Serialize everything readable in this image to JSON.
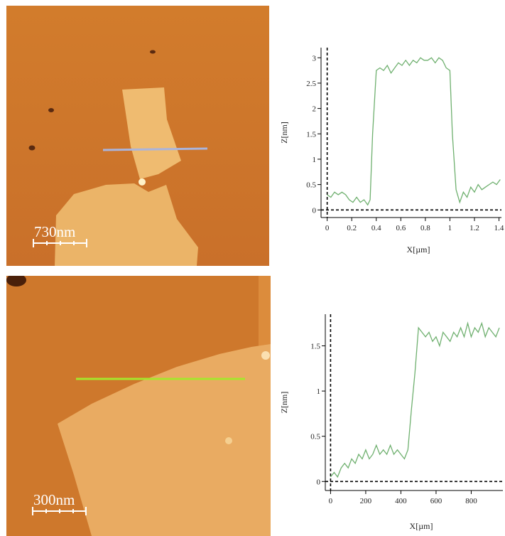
{
  "images": [
    {
      "scale_label": "730nm",
      "profile_line_color": "#aab4dc"
    },
    {
      "scale_label": "300nm",
      "profile_line_color": "#a6e62c"
    }
  ],
  "chart_data": [
    {
      "type": "line",
      "xlabel": "X[µm]",
      "ylabel": "Z[nm]",
      "xlim": [
        -0.05,
        1.42
      ],
      "ylim": [
        -0.15,
        3.2
      ],
      "xticks": [
        0,
        0.2,
        0.4,
        0.6,
        0.8,
        1,
        1.2,
        1.4
      ],
      "xtick_labels": [
        "0",
        "0.2",
        "0.4",
        "0.6",
        "0.8",
        "1",
        "1.2",
        "1.4"
      ],
      "yticks": [
        0,
        0.5,
        1,
        1.5,
        2,
        2.5,
        3
      ],
      "ytick_labels": [
        "0",
        "0.5",
        "1",
        "1.5",
        "2",
        "2.5",
        "3"
      ],
      "grid": false,
      "line_color": "#6fb06f",
      "series": [
        {
          "x": [
            0,
            0.03,
            0.06,
            0.09,
            0.12,
            0.15,
            0.18,
            0.21,
            0.24,
            0.27,
            0.3,
            0.33,
            0.35,
            0.37,
            0.4,
            0.43,
            0.46,
            0.49,
            0.52,
            0.55,
            0.58,
            0.61,
            0.64,
            0.67,
            0.7,
            0.73,
            0.76,
            0.79,
            0.82,
            0.85,
            0.88,
            0.91,
            0.94,
            0.97,
            1.0,
            1.02,
            1.05,
            1.08,
            1.11,
            1.14,
            1.17,
            1.2,
            1.23,
            1.26,
            1.29,
            1.32,
            1.35,
            1.38,
            1.41
          ],
          "y": [
            0.3,
            0.25,
            0.35,
            0.3,
            0.35,
            0.3,
            0.2,
            0.15,
            0.25,
            0.15,
            0.2,
            0.1,
            0.2,
            1.5,
            2.75,
            2.8,
            2.75,
            2.85,
            2.7,
            2.8,
            2.9,
            2.85,
            2.95,
            2.85,
            2.95,
            2.9,
            3.0,
            2.95,
            2.95,
            3.0,
            2.9,
            3.0,
            2.95,
            2.8,
            2.75,
            1.5,
            0.4,
            0.15,
            0.35,
            0.25,
            0.45,
            0.35,
            0.5,
            0.4,
            0.45,
            0.5,
            0.55,
            0.5,
            0.6
          ]
        }
      ]
    },
    {
      "type": "line",
      "xlabel": "X[µm]",
      "ylabel": "Z[nm]",
      "xlim": [
        -30,
        980
      ],
      "ylim": [
        -0.1,
        1.85
      ],
      "xticks": [
        0,
        200,
        400,
        600,
        800
      ],
      "xtick_labels": [
        "0",
        "200",
        "400",
        "600",
        "800"
      ],
      "yticks": [
        0,
        0.5,
        1,
        1.5
      ],
      "ytick_labels": [
        "0",
        "0.5",
        "1",
        "1.5"
      ],
      "grid": false,
      "line_color": "#6fb06f",
      "series": [
        {
          "x": [
            0,
            20,
            40,
            60,
            80,
            100,
            120,
            140,
            160,
            180,
            200,
            220,
            240,
            260,
            280,
            300,
            320,
            340,
            360,
            380,
            400,
            420,
            440,
            460,
            480,
            500,
            520,
            540,
            560,
            580,
            600,
            620,
            640,
            660,
            680,
            700,
            720,
            740,
            760,
            780,
            800,
            820,
            840,
            860,
            880,
            900,
            920,
            940,
            960
          ],
          "y": [
            0.05,
            0.1,
            0.05,
            0.15,
            0.2,
            0.15,
            0.25,
            0.2,
            0.3,
            0.25,
            0.35,
            0.25,
            0.3,
            0.4,
            0.3,
            0.35,
            0.3,
            0.4,
            0.3,
            0.35,
            0.3,
            0.25,
            0.35,
            0.8,
            1.2,
            1.7,
            1.65,
            1.6,
            1.65,
            1.55,
            1.6,
            1.5,
            1.65,
            1.6,
            1.55,
            1.65,
            1.6,
            1.7,
            1.6,
            1.75,
            1.6,
            1.7,
            1.65,
            1.75,
            1.6,
            1.7,
            1.65,
            1.6,
            1.7
          ]
        }
      ]
    }
  ]
}
